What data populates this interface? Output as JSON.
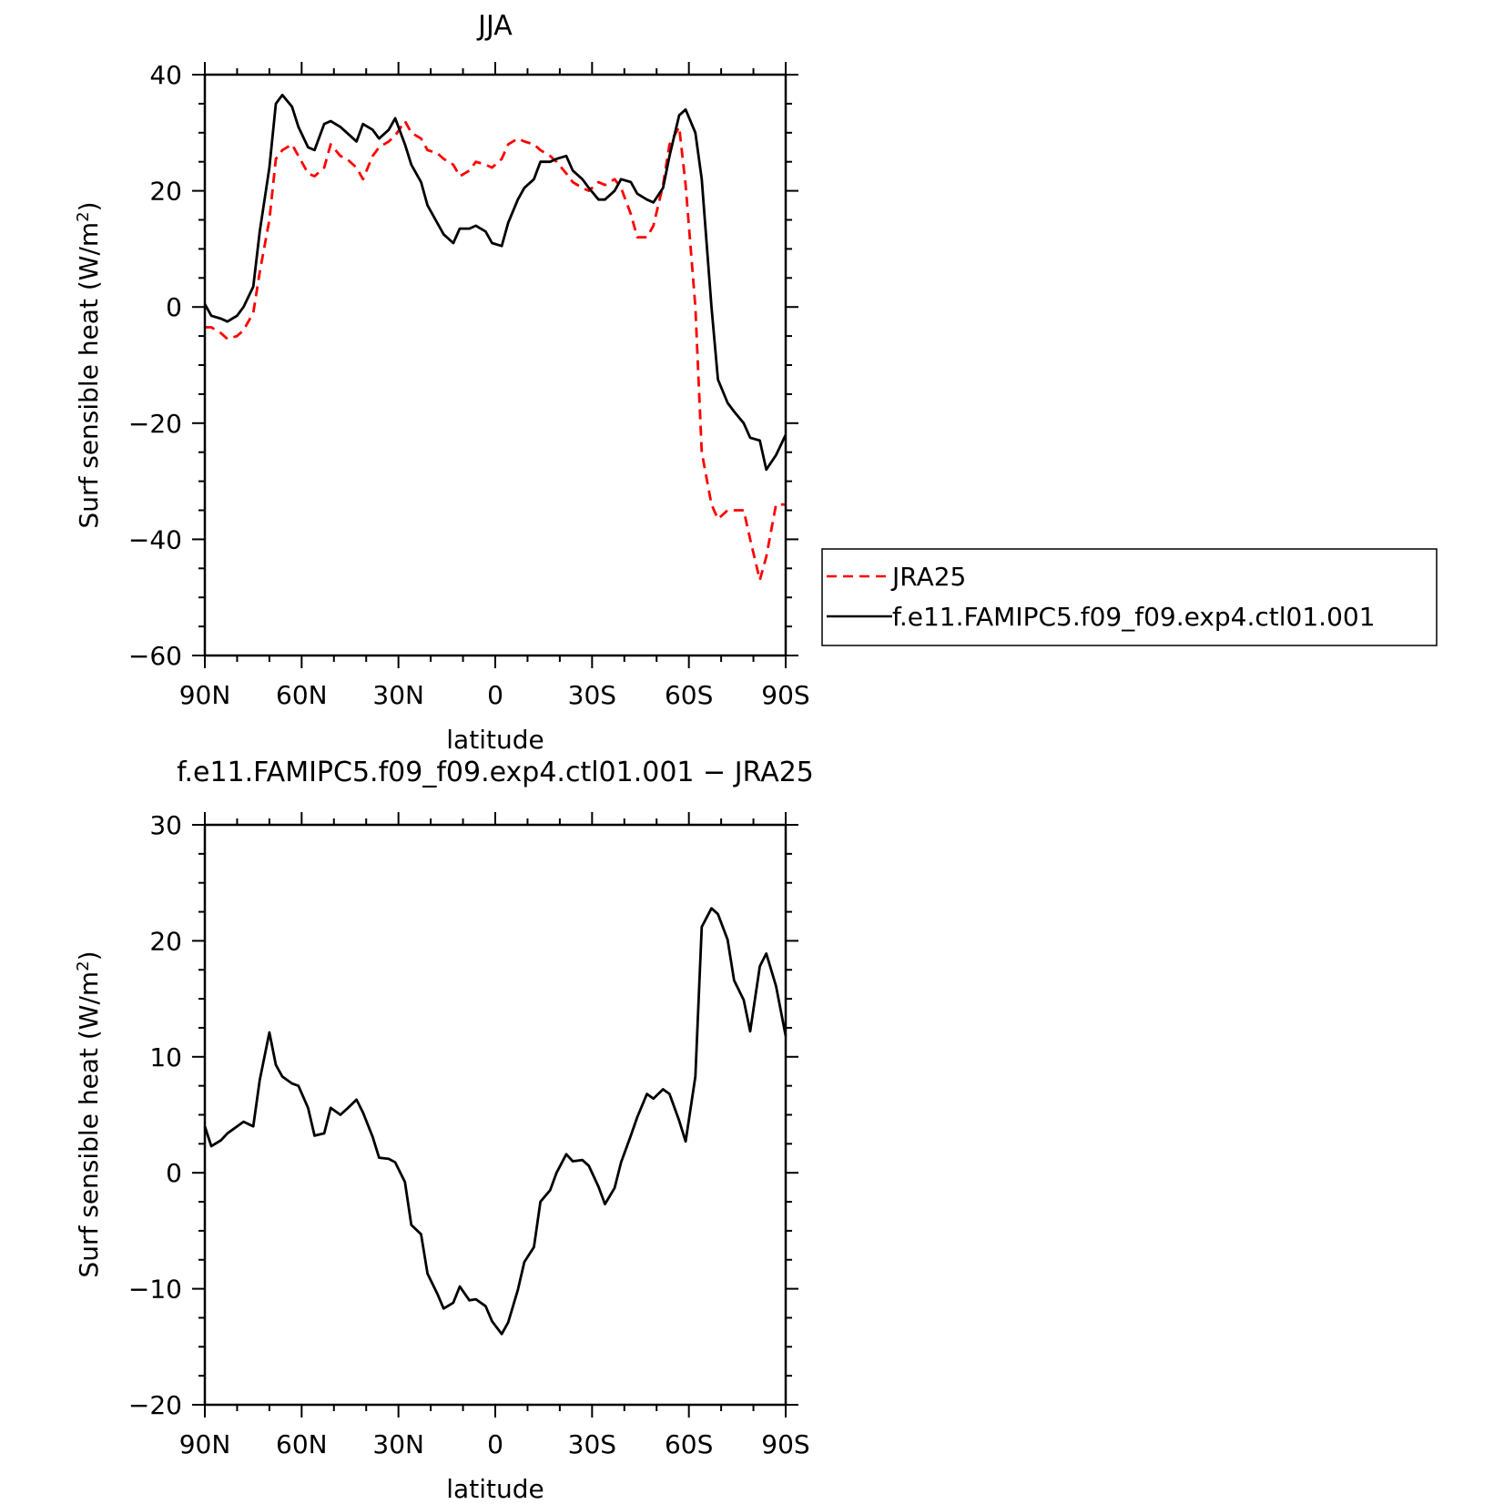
{
  "chart_data": [
    {
      "type": "line",
      "title": "JJA",
      "xlabel": "latitude",
      "ylabel": "Surf sensible heat (W/m²)",
      "ylabel_main": "Surf sensible heat (W/m",
      "ylabel_sup": "2",
      "ylabel_close": ")",
      "xlim": [
        90,
        -90
      ],
      "ylim": [
        -60,
        40
      ],
      "xticks": [
        90,
        60,
        30,
        0,
        -30,
        -60,
        -90
      ],
      "xtick_labels": [
        "90N",
        "60N",
        "30N",
        "0",
        "30S",
        "60S",
        "90S"
      ],
      "yticks": [
        -60,
        -40,
        -20,
        0,
        20,
        40
      ],
      "ytick_labels": [
        "−60",
        "−40",
        "−20",
        "0",
        "20",
        "40"
      ],
      "legend": {
        "position": "right, outside plot"
      },
      "series": [
        {
          "name": "JRA25",
          "color": "#ff0000",
          "dash": "dashed",
          "x": [
            90,
            88,
            85,
            83,
            80,
            78,
            75,
            73,
            70,
            68,
            66,
            63,
            61,
            58,
            56,
            53,
            51,
            48,
            46,
            43,
            41,
            38,
            36,
            33,
            31,
            28,
            26,
            23,
            21,
            18,
            16,
            13,
            11,
            8,
            6,
            3,
            1,
            -2,
            -4,
            -7,
            -9,
            -12,
            -14,
            -17,
            -19,
            -22,
            -24,
            -27,
            -29,
            -32,
            -34,
            -37,
            -39,
            -42,
            -44,
            -47,
            -49,
            -52,
            -54,
            -57,
            -59,
            -62,
            -64,
            -67,
            -69,
            -72,
            -74,
            -77,
            -79,
            -82,
            -84,
            -87,
            -90
          ],
          "y": [
            -3.5,
            -3.5,
            -4.5,
            -5.5,
            -5,
            -4,
            -1,
            6,
            15,
            25.5,
            27,
            28,
            26,
            23,
            22.5,
            24,
            28,
            26,
            25.5,
            24,
            22,
            26,
            27.5,
            28.5,
            29.5,
            32,
            30,
            29,
            27,
            26.5,
            25.5,
            24.5,
            22.5,
            23.5,
            25,
            24.5,
            24,
            25.5,
            28,
            29,
            28.5,
            28,
            27,
            26,
            25,
            23,
            21.5,
            20.5,
            20,
            21.5,
            21,
            22,
            20.5,
            16,
            12,
            12,
            14,
            21,
            28,
            31,
            21,
            0,
            -25,
            -34,
            -36.5,
            -35,
            -35,
            -35,
            -40,
            -47,
            -43,
            -34,
            -34
          ]
        },
        {
          "name": "f.e11.FAMIPC5.f09_f09.exp4.ctl01.001",
          "color": "#000000",
          "dash": "solid",
          "x": [
            90,
            88,
            85,
            83,
            80,
            78,
            75,
            73,
            70,
            68,
            66,
            63,
            61,
            58,
            56,
            53,
            51,
            48,
            46,
            43,
            41,
            38,
            36,
            33,
            31,
            28,
            26,
            23,
            21,
            18,
            16,
            13,
            11,
            8,
            6,
            3,
            1,
            -2,
            -4,
            -7,
            -9,
            -12,
            -14,
            -17,
            -19,
            -22,
            -24,
            -27,
            -29,
            -32,
            -34,
            -37,
            -39,
            -42,
            -44,
            -47,
            -49,
            -52,
            -54,
            -57,
            -59,
            -62,
            -64,
            -67,
            -69,
            -72,
            -74,
            -77,
            -79,
            -82,
            -84,
            -87,
            -90
          ],
          "y": [
            0.5,
            -1.5,
            -2,
            -2.5,
            -1.5,
            0,
            3.5,
            13,
            24,
            35,
            36.5,
            34.5,
            31,
            27.5,
            27,
            31.5,
            32,
            31,
            30,
            28.5,
            31.5,
            30.5,
            29,
            30.5,
            32.5,
            28,
            24.5,
            21.5,
            17.5,
            14.5,
            12.5,
            11,
            13.5,
            13.5,
            14,
            13,
            11,
            10.5,
            14.5,
            18.5,
            20.5,
            22,
            25,
            25,
            25.5,
            26,
            23.5,
            22,
            20.5,
            18.5,
            18.5,
            20,
            22,
            21.5,
            19.5,
            18.5,
            18,
            20.5,
            26,
            33,
            34,
            30,
            22,
            0,
            -12.5,
            -16.5,
            -18,
            -20,
            -22.5,
            -23,
            -28,
            -25.5,
            -22
          ]
        }
      ]
    },
    {
      "type": "line",
      "title": "f.e11.FAMIPC5.f09_f09.exp4.ctl01.001 − JRA25",
      "xlabel": "latitude",
      "ylabel": "Surf sensible heat (W/m²)",
      "ylabel_main": "Surf sensible heat (W/m",
      "ylabel_sup": "2",
      "ylabel_close": ")",
      "xlim": [
        90,
        -90
      ],
      "ylim": [
        -20,
        30
      ],
      "xticks": [
        90,
        60,
        30,
        0,
        -30,
        -60,
        -90
      ],
      "xtick_labels": [
        "90N",
        "60N",
        "30N",
        "0",
        "30S",
        "60S",
        "90S"
      ],
      "yticks": [
        -20,
        -10,
        0,
        10,
        20,
        30
      ],
      "ytick_labels": [
        "−20",
        "−10",
        "0",
        "10",
        "20",
        "30"
      ],
      "series": [
        {
          "color": "#000000",
          "dash": "solid",
          "x": [
            90,
            88,
            85,
            83,
            80,
            78,
            75,
            73,
            70,
            68,
            66,
            63,
            61,
            58,
            56,
            53,
            51,
            48,
            46,
            43,
            41,
            38,
            36,
            33,
            31,
            28,
            26,
            23,
            21,
            18,
            16,
            13,
            11,
            8,
            6,
            3,
            1,
            -2,
            -4,
            -7,
            -9,
            -12,
            -14,
            -17,
            -19,
            -22,
            -24,
            -27,
            -29,
            -32,
            -34,
            -37,
            -39,
            -42,
            -44,
            -47,
            -49,
            -52,
            -54,
            -57,
            -59,
            -62,
            -64,
            -67,
            -69,
            -72,
            -74,
            -77,
            -79,
            -82,
            -84,
            -87,
            -90
          ],
          "y": [
            4,
            2.3,
            2.8,
            3.4,
            4,
            4.4,
            4,
            8,
            12.1,
            9.3,
            8.3,
            7.7,
            7.5,
            5.6,
            3.2,
            3.4,
            5.6,
            5,
            5.5,
            6.3,
            5.2,
            3.1,
            1.3,
            1.2,
            0.9,
            -0.8,
            -4.5,
            -5.3,
            -8.7,
            -10.4,
            -11.7,
            -11.2,
            -9.8,
            -11,
            -10.9,
            -11.5,
            -12.8,
            -13.9,
            -12.9,
            -10.1,
            -7.7,
            -6.4,
            -2.5,
            -1.5,
            0,
            1.6,
            1,
            1.1,
            0.6,
            -1.2,
            -2.7,
            -1.3,
            0.9,
            3.2,
            4.8,
            6.8,
            6.4,
            7.2,
            6.8,
            4.5,
            2.7,
            8.3,
            21.2,
            22.8,
            22.3,
            20.1,
            16.6,
            14.9,
            12.2,
            17.8,
            18.9,
            16.1,
            11.8
          ]
        }
      ]
    }
  ]
}
